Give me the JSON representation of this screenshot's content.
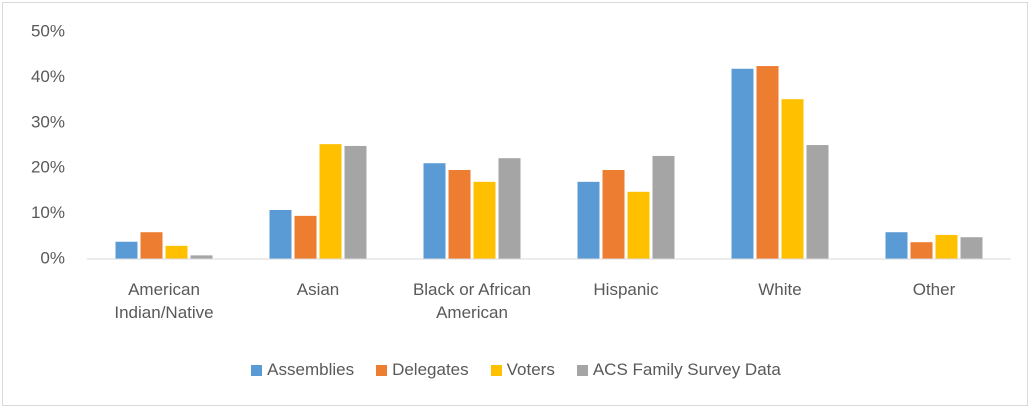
{
  "chart_data": {
    "type": "bar",
    "categories": [
      "American Indian/Native",
      "Asian",
      "Black or African American",
      "Hispanic",
      "White",
      "Other"
    ],
    "series": [
      {
        "name": "Assemblies",
        "color": "#5b9bd5",
        "values": [
          3.8,
          10.8,
          21.1,
          17.0,
          41.9,
          5.9
        ]
      },
      {
        "name": "Delegates",
        "color": "#ed7d31",
        "values": [
          5.9,
          9.5,
          19.6,
          19.6,
          42.5,
          3.7
        ]
      },
      {
        "name": "Voters",
        "color": "#ffc000",
        "values": [
          2.9,
          25.3,
          17.0,
          14.8,
          35.2,
          5.3
        ]
      },
      {
        "name": "ACS Family Survey Data",
        "color": "#a5a5a5",
        "values": [
          0.8,
          24.9,
          22.2,
          22.7,
          25.1,
          4.8
        ]
      }
    ],
    "ylim": [
      0,
      50
    ],
    "yticks": [
      {
        "value": 0,
        "label": "0%"
      },
      {
        "value": 10,
        "label": "10%"
      },
      {
        "value": 20,
        "label": "20%"
      },
      {
        "value": 30,
        "label": "30%"
      },
      {
        "value": 40,
        "label": "40%"
      },
      {
        "value": 50,
        "label": "50%"
      }
    ],
    "legend": "bottom"
  }
}
